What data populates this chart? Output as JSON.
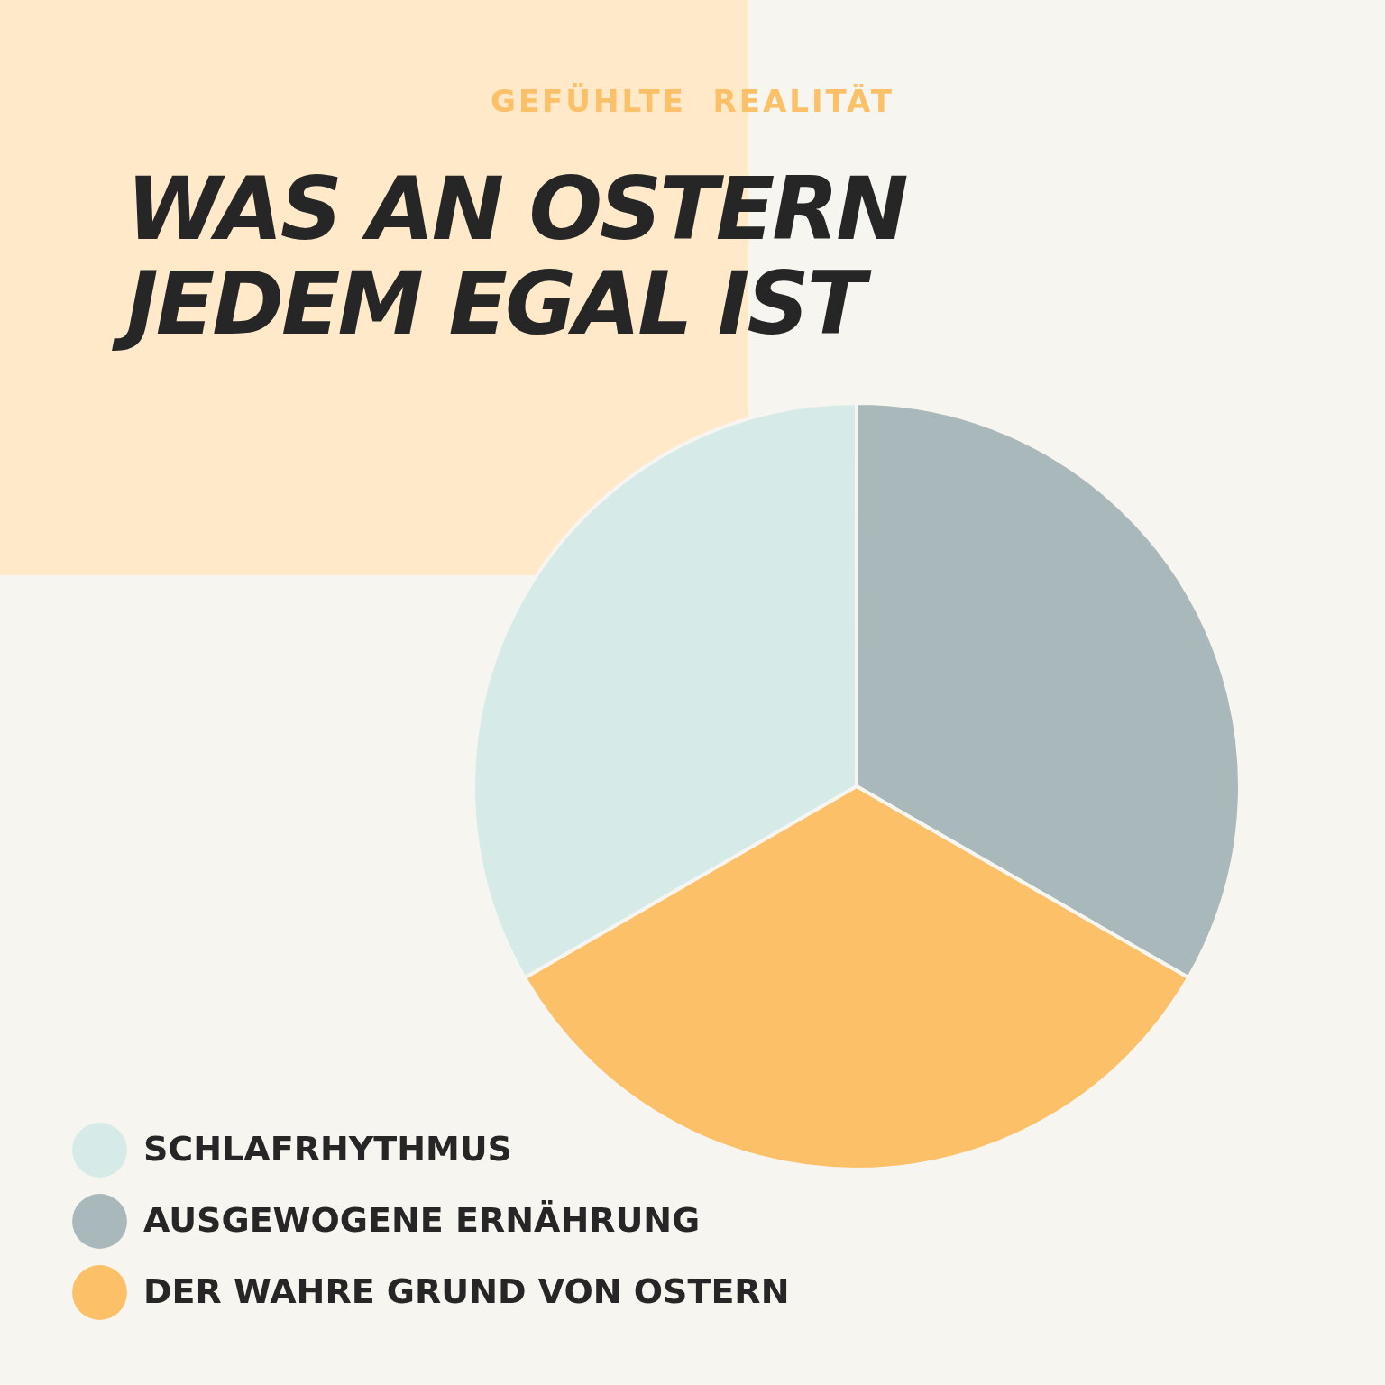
{
  "chart_data": {
    "type": "pie",
    "subtitle": "GEFÜHLTE  REALITÄT",
    "title": "WAS AN OSTERN\nJEDEM EGAL IST",
    "categories": [
      "SCHLAFRHYTHMUS",
      "AUSGEWOGENE ERNÄHRUNG",
      "DER WAHRE GRUND VON OSTERN"
    ],
    "values": [
      33.33,
      33.33,
      33.34
    ],
    "colors": [
      "#d6eae8",
      "#a9b8bb",
      "#fbc068"
    ],
    "legend": "bottom left"
  }
}
